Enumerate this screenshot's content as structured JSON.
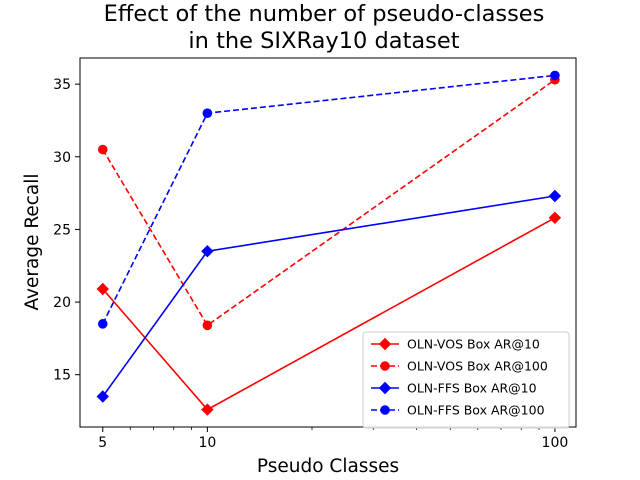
{
  "chart_data": {
    "type": "line",
    "title_lines": [
      "Effect of the number of pseudo-classes",
      "in the SIXRay10 dataset"
    ],
    "xlabel": "Pseudo Classes",
    "ylabel": "Average Recall",
    "x_scale": "log",
    "xlim": [
      4.3,
      115
    ],
    "ylim": [
      11.4,
      36.8
    ],
    "x": [
      5,
      10,
      100
    ],
    "x_ticks": [
      {
        "value": 5,
        "label": "5"
      },
      {
        "value": 10,
        "label": "10"
      },
      {
        "value": 100,
        "label": "100"
      }
    ],
    "y_ticks": [
      {
        "value": 15,
        "label": "15"
      },
      {
        "value": 20,
        "label": "20"
      },
      {
        "value": 25,
        "label": "25"
      },
      {
        "value": 30,
        "label": "30"
      },
      {
        "value": 35,
        "label": "35"
      }
    ],
    "grid": false,
    "legend_position": "lower-right",
    "series": [
      {
        "name": "OLN-VOS Box AR@10",
        "color": "#ff0000",
        "linestyle": "solid",
        "marker": "diamond",
        "values": [
          20.9,
          12.6,
          25.8
        ]
      },
      {
        "name": "OLN-VOS Box AR@100",
        "color": "#ff0000",
        "linestyle": "dashed",
        "marker": "circle",
        "values": [
          30.5,
          18.4,
          35.3
        ]
      },
      {
        "name": "OLN-FFS Box AR@10",
        "color": "#0000ff",
        "linestyle": "solid",
        "marker": "diamond",
        "values": [
          13.5,
          23.5,
          27.3
        ]
      },
      {
        "name": "OLN-FFS Box AR@100",
        "color": "#0000ff",
        "linestyle": "dashed",
        "marker": "circle",
        "values": [
          18.5,
          33.0,
          35.6
        ]
      }
    ]
  }
}
